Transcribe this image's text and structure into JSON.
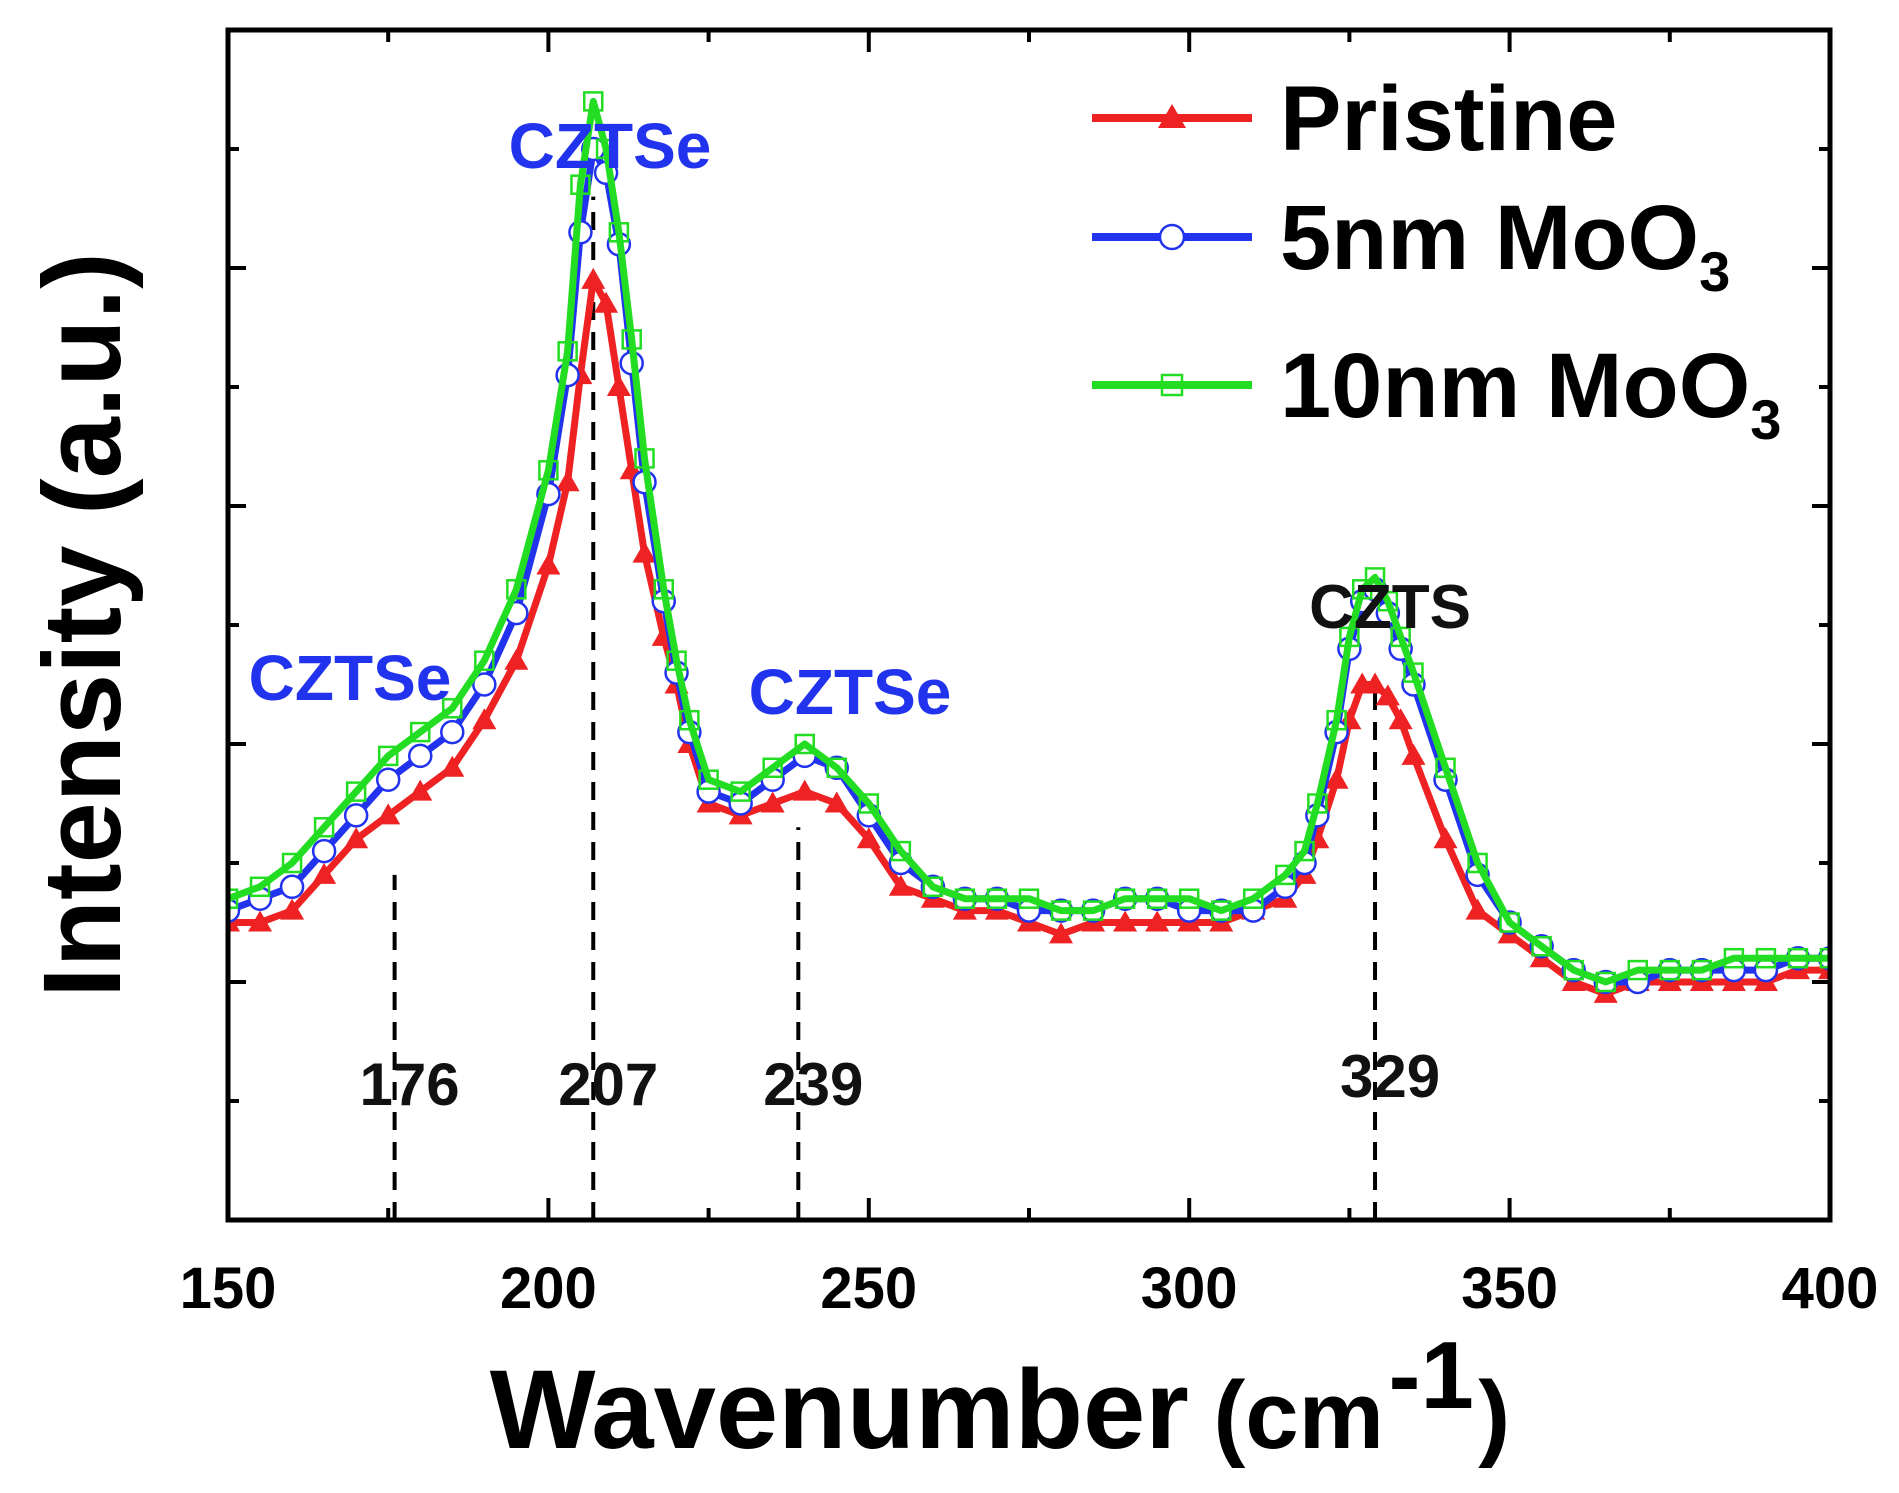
{
  "chart_data": {
    "type": "line",
    "title": "",
    "xlabel": "Wavenumber",
    "xlabel_unit": "(cm",
    "xlabel_unit_sup": "-1",
    "xlabel_unit_close": ")",
    "ylabel": "Intensity (a.u.)",
    "xlim": [
      150,
      400
    ],
    "ylim": [
      0,
      1
    ],
    "y_ticks_labeled": false,
    "grid": false,
    "legend_position": "top-right",
    "xticks": [
      150,
      200,
      250,
      300,
      350,
      400
    ],
    "xtick_labels": [
      "150",
      "200",
      "250",
      "300",
      "350",
      "400"
    ],
    "series": [
      {
        "name": "Pristine",
        "name_sub": "",
        "color": "#ee2222",
        "marker": "triangle",
        "x": [
          150,
          155,
          160,
          165,
          170,
          175,
          180,
          185,
          190,
          195,
          200,
          203,
          205,
          207,
          209,
          211,
          213,
          215,
          218,
          220,
          222,
          225,
          230,
          235,
          240,
          245,
          250,
          255,
          260,
          265,
          270,
          275,
          280,
          285,
          290,
          295,
          300,
          305,
          310,
          315,
          318,
          320,
          323,
          325,
          327,
          329,
          331,
          333,
          335,
          340,
          345,
          350,
          355,
          360,
          365,
          370,
          375,
          380,
          385,
          390,
          395,
          400
        ],
        "y": [
          0.25,
          0.25,
          0.26,
          0.29,
          0.32,
          0.34,
          0.36,
          0.38,
          0.42,
          0.47,
          0.55,
          0.62,
          0.71,
          0.79,
          0.77,
          0.7,
          0.63,
          0.56,
          0.49,
          0.45,
          0.4,
          0.35,
          0.34,
          0.35,
          0.36,
          0.35,
          0.32,
          0.28,
          0.27,
          0.26,
          0.26,
          0.25,
          0.24,
          0.25,
          0.25,
          0.25,
          0.25,
          0.25,
          0.26,
          0.27,
          0.29,
          0.32,
          0.37,
          0.42,
          0.45,
          0.45,
          0.44,
          0.42,
          0.39,
          0.32,
          0.26,
          0.24,
          0.22,
          0.2,
          0.19,
          0.2,
          0.2,
          0.2,
          0.2,
          0.2,
          0.21,
          0.21
        ]
      },
      {
        "name": "5nm MoO",
        "name_sub": "3",
        "color": "#2233ee",
        "marker": "circle",
        "x": [
          150,
          155,
          160,
          165,
          170,
          175,
          180,
          185,
          190,
          195,
          200,
          203,
          205,
          207,
          209,
          211,
          213,
          215,
          218,
          220,
          222,
          225,
          230,
          235,
          240,
          245,
          250,
          255,
          260,
          265,
          270,
          275,
          280,
          285,
          290,
          295,
          300,
          305,
          310,
          315,
          318,
          320,
          323,
          325,
          327,
          329,
          331,
          333,
          335,
          340,
          345,
          350,
          355,
          360,
          365,
          370,
          375,
          380,
          385,
          390,
          395,
          400
        ],
        "y": [
          0.26,
          0.27,
          0.28,
          0.31,
          0.34,
          0.37,
          0.39,
          0.41,
          0.45,
          0.51,
          0.61,
          0.71,
          0.83,
          0.9,
          0.88,
          0.82,
          0.72,
          0.62,
          0.52,
          0.46,
          0.41,
          0.36,
          0.35,
          0.37,
          0.39,
          0.38,
          0.34,
          0.3,
          0.28,
          0.27,
          0.27,
          0.26,
          0.26,
          0.26,
          0.27,
          0.27,
          0.26,
          0.26,
          0.26,
          0.28,
          0.3,
          0.34,
          0.41,
          0.48,
          0.52,
          0.53,
          0.51,
          0.48,
          0.45,
          0.37,
          0.29,
          0.25,
          0.23,
          0.21,
          0.2,
          0.2,
          0.21,
          0.21,
          0.21,
          0.21,
          0.22,
          0.22
        ]
      },
      {
        "name": "10nm MoO",
        "name_sub": "3",
        "color": "#22dd22",
        "marker": "square",
        "x": [
          150,
          155,
          160,
          165,
          170,
          175,
          180,
          185,
          190,
          195,
          200,
          203,
          205,
          207,
          209,
          211,
          213,
          215,
          218,
          220,
          222,
          225,
          230,
          235,
          240,
          245,
          250,
          255,
          260,
          265,
          270,
          275,
          280,
          285,
          290,
          295,
          300,
          305,
          310,
          315,
          318,
          320,
          323,
          325,
          327,
          329,
          331,
          333,
          335,
          340,
          345,
          350,
          355,
          360,
          365,
          370,
          375,
          380,
          385,
          390,
          395,
          400
        ],
        "y": [
          0.27,
          0.28,
          0.3,
          0.33,
          0.36,
          0.39,
          0.41,
          0.43,
          0.47,
          0.53,
          0.63,
          0.73,
          0.87,
          0.94,
          0.9,
          0.83,
          0.74,
          0.64,
          0.53,
          0.47,
          0.42,
          0.37,
          0.36,
          0.38,
          0.4,
          0.38,
          0.35,
          0.31,
          0.28,
          0.27,
          0.27,
          0.27,
          0.26,
          0.26,
          0.27,
          0.27,
          0.27,
          0.26,
          0.27,
          0.29,
          0.31,
          0.35,
          0.42,
          0.49,
          0.53,
          0.54,
          0.52,
          0.49,
          0.46,
          0.38,
          0.3,
          0.25,
          0.23,
          0.21,
          0.2,
          0.21,
          0.21,
          0.21,
          0.22,
          0.22,
          0.22,
          0.22
        ]
      }
    ],
    "peak_markers": [
      {
        "x": 176,
        "label": "176"
      },
      {
        "x": 207,
        "label": "207"
      },
      {
        "x": 239,
        "label": "239"
      },
      {
        "x": 329,
        "label": "329"
      }
    ],
    "annotations": [
      {
        "text": "CZTSe",
        "x": 163,
        "y": 0.42,
        "color": "#2233ee"
      },
      {
        "text": "CZTSe",
        "x": 207,
        "y": 1.0,
        "color": "#2233ee"
      },
      {
        "text": "CZTSe",
        "x": 243,
        "y": 0.41,
        "color": "#2233ee"
      },
      {
        "text": "CZTS",
        "x": 331,
        "y": 0.6,
        "color": "#111111"
      }
    ]
  }
}
